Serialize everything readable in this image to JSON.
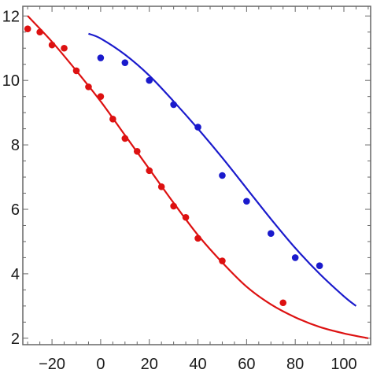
{
  "chart_data": {
    "type": "scatter",
    "title": "",
    "xlabel": "",
    "ylabel": "",
    "xlim": [
      -32,
      111
    ],
    "ylim": [
      1.8,
      12.3
    ],
    "grid": false,
    "x_ticks": [
      -20,
      0,
      20,
      40,
      60,
      80,
      100
    ],
    "x_tick_labels": [
      "−20",
      "0",
      "20",
      "40",
      "60",
      "80",
      "100"
    ],
    "y_ticks": [
      2,
      4,
      6,
      8,
      10,
      12
    ],
    "y_tick_labels": [
      "2",
      "4",
      "6",
      "8",
      "10",
      "12"
    ],
    "series": [
      {
        "color": "#dd1111",
        "points": {
          "x": [
            -30,
            -25,
            -20,
            -15,
            -10,
            -5,
            0,
            5,
            10,
            15,
            20,
            25,
            30,
            35,
            40,
            50,
            75
          ],
          "y": [
            11.6,
            11.5,
            11.1,
            11.0,
            10.3,
            9.8,
            9.5,
            8.8,
            8.2,
            7.8,
            7.2,
            6.7,
            6.1,
            5.75,
            5.1,
            4.4,
            3.1
          ]
        },
        "curve": {
          "x": [
            -30,
            -20,
            -10,
            0,
            10,
            20,
            30,
            40,
            50,
            60,
            70,
            80,
            90,
            100,
            110
          ],
          "y": [
            12.0,
            11.2,
            10.3,
            9.35,
            8.3,
            7.25,
            6.2,
            5.2,
            4.35,
            3.6,
            3.05,
            2.65,
            2.35,
            2.15,
            2.0
          ]
        }
      },
      {
        "color": "#1a1acc",
        "points": {
          "x": [
            0,
            10,
            20,
            30,
            40,
            50,
            60,
            70,
            80,
            90
          ],
          "y": [
            10.7,
            10.55,
            10.0,
            9.25,
            8.55,
            7.05,
            6.25,
            5.25,
            4.5,
            4.25
          ]
        },
        "curve": {
          "x": [
            -5,
            0,
            10,
            20,
            30,
            40,
            50,
            60,
            70,
            80,
            90,
            100,
            105
          ],
          "y": [
            11.45,
            11.3,
            10.8,
            10.15,
            9.35,
            8.5,
            7.6,
            6.65,
            5.7,
            4.8,
            4.0,
            3.3,
            3.0
          ]
        }
      }
    ]
  }
}
